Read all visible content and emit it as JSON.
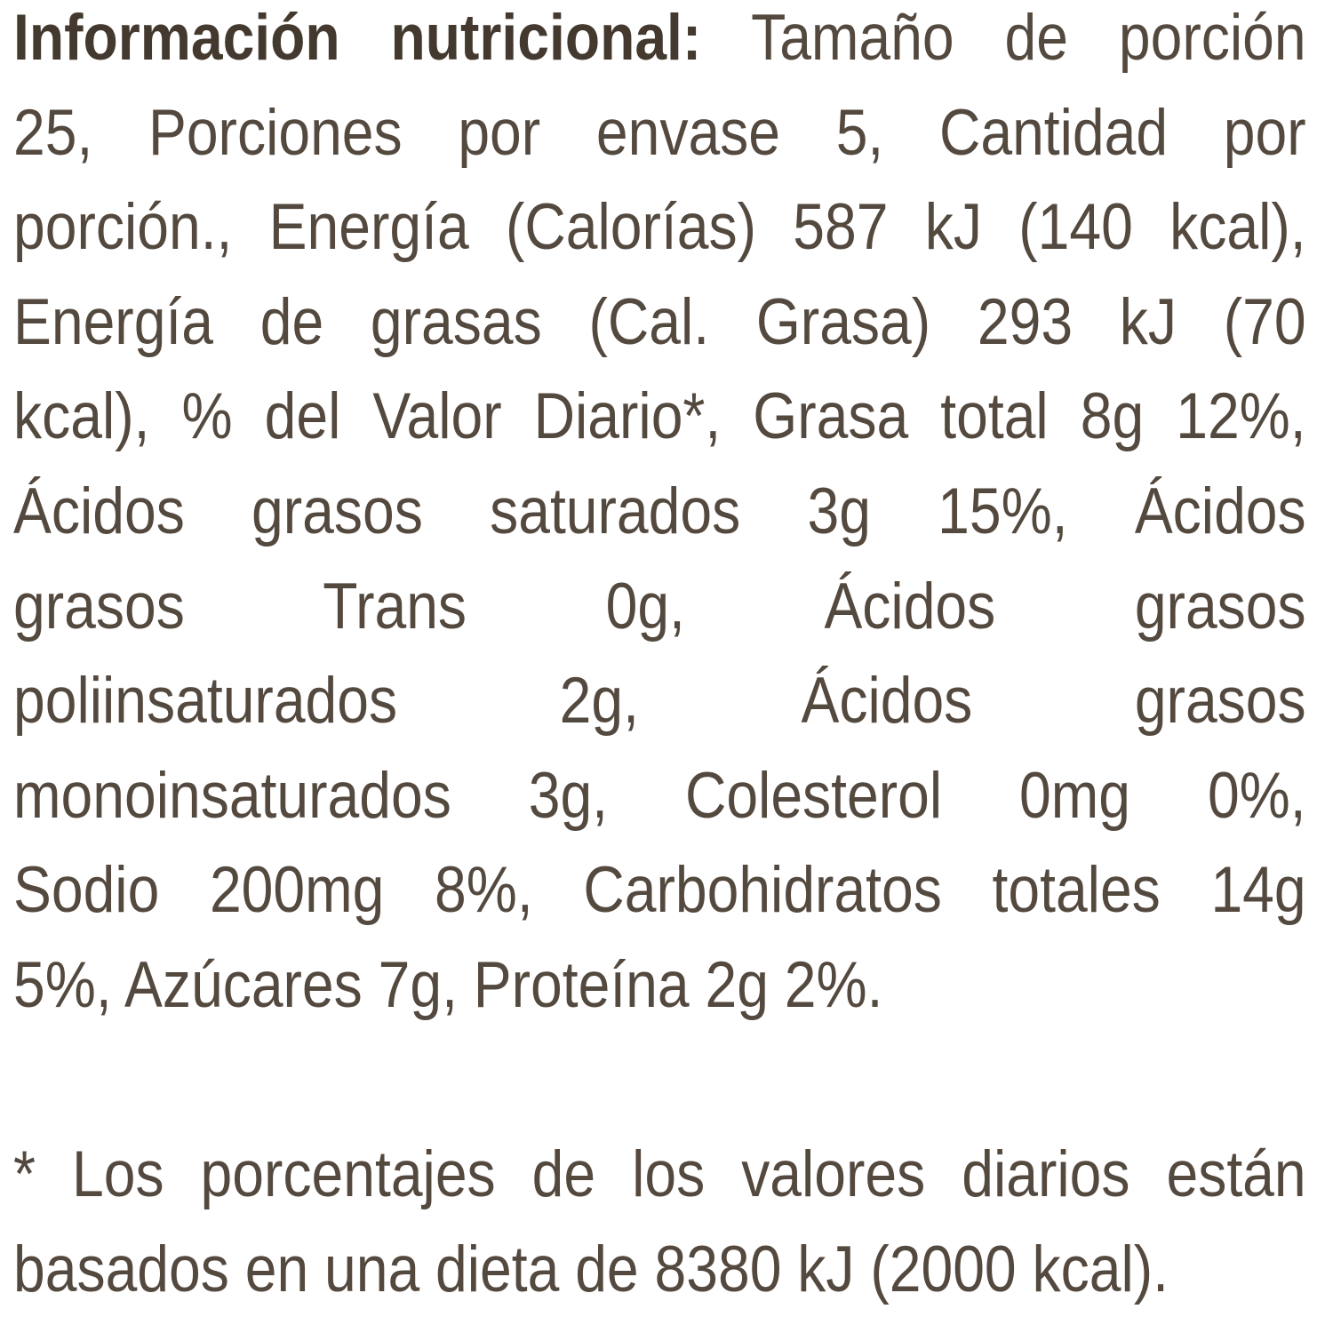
{
  "label": {
    "heading": "Información nutricional:",
    "lines": [
      " Tamaño de porción",
      "25, Porciones por envase 5, Cantidad por",
      "porción., Energía (Calorías) 587 kJ (140 kcal),",
      "Energía de grasas (Cal. Grasa) 293 kJ (70",
      "kcal), % del Valor Diario*, Grasa total 8g 12%,",
      "Ácidos grasos saturados 3g 15%, Ácidos",
      "grasos Trans 0g, Ácidos grasos",
      "poliinsaturados 2g, Ácidos grasos",
      "monoinsaturados 3g, Colesterol 0mg 0%,",
      "Sodio 200mg 8%, Carbohidratos totales 14g",
      "5%, Azúcares 7g, Proteína 2g 2%."
    ],
    "footnote": [
      "* Los porcentajes de los valores diarios están",
      "basados en una dieta de 8380 kJ (2000 kcal)."
    ]
  }
}
